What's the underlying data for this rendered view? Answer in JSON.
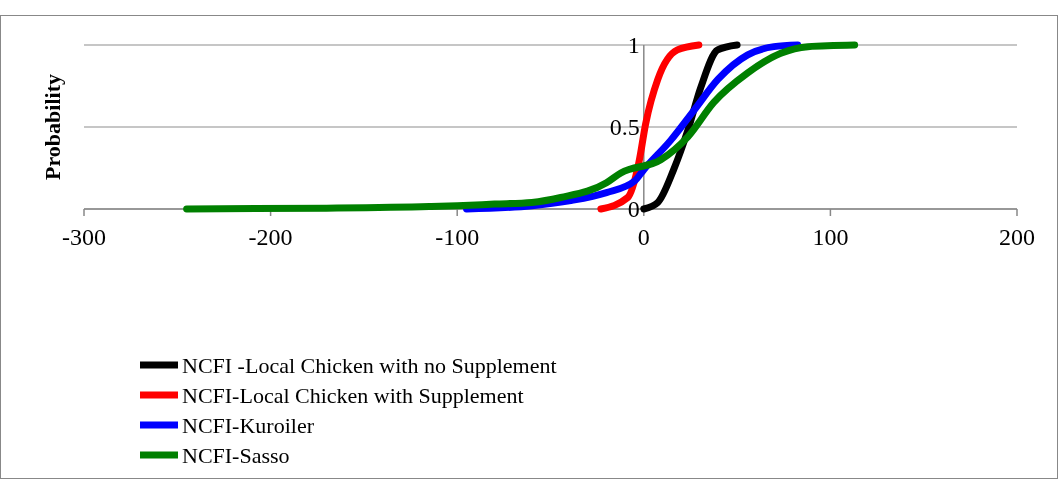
{
  "chart_data": {
    "type": "line",
    "ylabel": "Probability",
    "xlim": [
      -300,
      200
    ],
    "xticks": [
      -300,
      -200,
      -100,
      0,
      100,
      200
    ],
    "ylim": [
      0,
      1
    ],
    "yticks": [
      0,
      0.5,
      1
    ],
    "grid": "y",
    "legend": "bottom",
    "series": [
      {
        "name": "NCFI -Local Chicken with no Supplement",
        "color": "#000000",
        "x": [
          0,
          7.5,
          16,
          23.6,
          30.5,
          39.6,
          50
        ],
        "values": [
          0,
          0.04,
          0.24,
          0.48,
          0.74,
          0.97,
          1
        ]
      },
      {
        "name": "NCFI-Local Chicken with Supplement",
        "color": "#ff0000",
        "x": [
          -23,
          -8.6,
          -2.7,
          1,
          7.5,
          18,
          29.5
        ],
        "values": [
          0,
          0.07,
          0.28,
          0.52,
          0.79,
          0.97,
          1
        ]
      },
      {
        "name": "NCFI-Kuroiler",
        "color": "#0000ff",
        "x": [
          -95,
          -60,
          -40,
          -20,
          -5,
          0,
          14.5,
          26.8,
          39.7,
          55.7,
          69.7,
          82.5
        ],
        "values": [
          0,
          0.02,
          0.05,
          0.1,
          0.17,
          0.24,
          0.42,
          0.6,
          0.79,
          0.94,
          0.99,
          1
        ]
      },
      {
        "name": "NCFI-Sasso",
        "color": "#008000",
        "x": [
          -245,
          -170,
          -115,
          -100,
          -80,
          -60,
          -44.5,
          -20,
          -12.3,
          9.1,
          23.6,
          37.5,
          55.7,
          73.4,
          87.9,
          113
        ],
        "values": [
          0,
          0.005,
          0.015,
          0.02,
          0.03,
          0.04,
          0.07,
          0.16,
          0.22,
          0.3,
          0.44,
          0.65,
          0.83,
          0.95,
          0.99,
          1
        ]
      }
    ]
  }
}
